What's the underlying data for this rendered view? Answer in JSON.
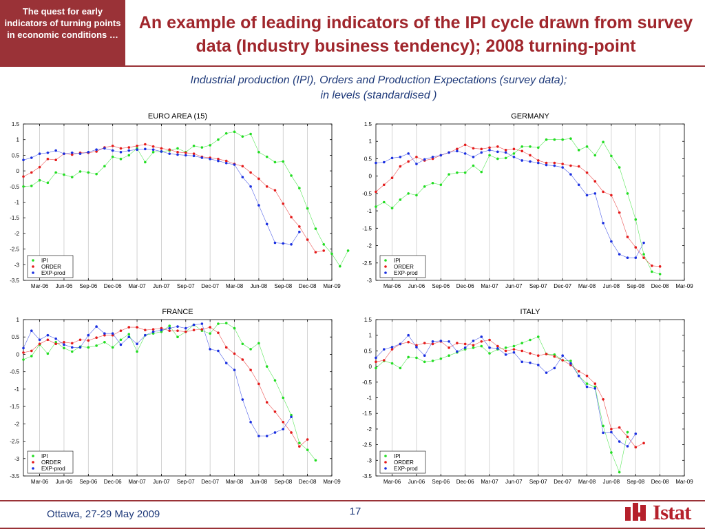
{
  "sidebar": {
    "text": "The quest for early indicators of turning points in economic conditions …"
  },
  "header": {
    "title": "An example of leading indicators of the IPI cycle drawn from survey data (Industry business tendency); 2008 turning-point",
    "subtitle_line1": "Industrial production (IPI), Orders and Production Expectations (survey data);",
    "subtitle_line2": "in levels (standardised )"
  },
  "footer": {
    "date": "Ottawa, 27-29 May 2009",
    "page": "17",
    "logo_text": "Istat"
  },
  "colors": {
    "ipi": "#22dd22",
    "order": "#e41a1a",
    "exp": "#1a2fe0",
    "accent": "#9a3237"
  },
  "chart_data": [
    {
      "type": "line",
      "title": "EURO AREA (15)",
      "ylim": [
        -3.5,
        1.5
      ],
      "yticks": [
        1.5,
        1,
        0.5,
        0,
        -0.5,
        -1,
        -1.5,
        -2,
        -2.5,
        -3,
        -3.5
      ],
      "ytick_labels": [
        "1.5",
        "1",
        "0.5",
        "0",
        "-0.5",
        "-1",
        "-1.5",
        "-2",
        "-2.5",
        "-3",
        "-3.5"
      ],
      "xtick_labels": [
        "Mar-06",
        "Jun-06",
        "Sep-06",
        "Dec-06",
        "Mar-07",
        "Jun-07",
        "Sep-07",
        "Dec-07",
        "Mar-08",
        "Jun-08",
        "Sep-08",
        "Dec-08",
        "Mar-09"
      ],
      "x_start": "Jan-06",
      "x_end": "Mar-09",
      "legend_loc": "bottom-left",
      "grid": "vertical",
      "series": [
        {
          "name": "IPI",
          "values": [
            -0.5,
            -0.48,
            -0.3,
            -0.38,
            -0.05,
            -0.12,
            -0.2,
            -0.02,
            -0.05,
            -0.1,
            0.15,
            0.45,
            0.38,
            0.5,
            0.72,
            0.28,
            0.6,
            0.62,
            0.65,
            0.72,
            0.6,
            0.8,
            0.75,
            0.82,
            1.0,
            1.2,
            1.25,
            1.1,
            1.18,
            0.6,
            0.45,
            0.28,
            0.3,
            -0.15,
            -0.55,
            -1.2,
            -1.85,
            -2.35,
            -2.65,
            -3.05,
            -2.55
          ]
        },
        {
          "name": "ORDER",
          "values": [
            -0.18,
            -0.05,
            0.12,
            0.38,
            0.35,
            0.55,
            0.52,
            0.58,
            0.58,
            0.62,
            0.75,
            0.8,
            0.72,
            0.75,
            0.8,
            0.85,
            0.78,
            0.72,
            0.68,
            0.6,
            0.58,
            0.55,
            0.45,
            0.42,
            0.38,
            0.32,
            0.22,
            0.15,
            -0.05,
            -0.25,
            -0.5,
            -0.62,
            -1.05,
            -1.48,
            -1.78,
            -2.2,
            -2.6,
            -2.55
          ]
        },
        {
          "name": "EXP-prod",
          "values": [
            0.35,
            0.42,
            0.55,
            0.58,
            0.65,
            0.55,
            0.58,
            0.55,
            0.6,
            0.68,
            0.72,
            0.65,
            0.6,
            0.65,
            0.68,
            0.7,
            0.68,
            0.62,
            0.55,
            0.52,
            0.5,
            0.48,
            0.42,
            0.38,
            0.32,
            0.25,
            0.2,
            -0.2,
            -0.5,
            -1.1,
            -1.7,
            -2.3,
            -2.32,
            -2.35,
            -1.95
          ]
        }
      ]
    },
    {
      "type": "line",
      "title": "GERMANY",
      "ylim": [
        -3,
        1.5
      ],
      "yticks": [
        1.5,
        1,
        0.5,
        0,
        -0.5,
        -1,
        -1.5,
        -2,
        -2.5,
        -3
      ],
      "ytick_labels": [
        "1.5",
        "1",
        "0.5",
        "0",
        "-0.5",
        "-1",
        "-1.5",
        "-2",
        "-2.5",
        "-3"
      ],
      "xtick_labels": [
        "Mar-06",
        "Jun-06",
        "Sep-06",
        "Dec-06",
        "Mar-07",
        "Jun-07",
        "Sep-07",
        "Dec-07",
        "Mar-08",
        "Jun-08",
        "Sep-08",
        "Dec-08",
        "Mar-09"
      ],
      "x_start": "Jan-06",
      "x_end": "Mar-09",
      "legend_loc": "bottom-left",
      "grid": "vertical",
      "series": [
        {
          "name": "IPI",
          "values": [
            -0.88,
            -0.75,
            -0.92,
            -0.68,
            -0.5,
            -0.55,
            -0.3,
            -0.2,
            -0.25,
            0.05,
            0.1,
            0.1,
            0.3,
            0.12,
            0.6,
            0.5,
            0.52,
            0.65,
            0.85,
            0.85,
            0.82,
            1.05,
            1.05,
            1.05,
            1.08,
            0.75,
            0.85,
            0.6,
            0.98,
            0.58,
            0.25,
            -0.5,
            -1.25,
            -2.25,
            -2.75,
            -2.82
          ]
        },
        {
          "name": "ORDER",
          "values": [
            -0.45,
            -0.25,
            -0.05,
            0.28,
            0.42,
            0.55,
            0.45,
            0.5,
            0.6,
            0.68,
            0.78,
            0.9,
            0.8,
            0.78,
            0.82,
            0.85,
            0.75,
            0.78,
            0.72,
            0.6,
            0.45,
            0.38,
            0.38,
            0.35,
            0.3,
            0.28,
            0.1,
            -0.15,
            -0.45,
            -0.55,
            -1.05,
            -1.75,
            -2.05,
            -2.35,
            -2.58,
            -2.6
          ]
        },
        {
          "name": "EXP-prod",
          "values": [
            0.38,
            0.4,
            0.52,
            0.55,
            0.65,
            0.35,
            0.48,
            0.55,
            0.6,
            0.68,
            0.72,
            0.65,
            0.55,
            0.68,
            0.75,
            0.7,
            0.68,
            0.55,
            0.45,
            0.42,
            0.38,
            0.32,
            0.3,
            0.25,
            0.05,
            -0.25,
            -0.55,
            -0.5,
            -1.35,
            -1.88,
            -2.25,
            -2.35,
            -2.35,
            -1.92
          ]
        }
      ]
    },
    {
      "type": "line",
      "title": "FRANCE",
      "ylim": [
        -3.5,
        1
      ],
      "yticks": [
        1,
        0.5,
        0,
        -0.5,
        -1,
        -1.5,
        -2,
        -2.5,
        -3,
        -3.5
      ],
      "ytick_labels": [
        "1",
        "0.5",
        "0",
        "-0.5",
        "-1",
        "-1.5",
        "-2",
        "-2.5",
        "-3",
        "-3.5"
      ],
      "xtick_labels": [
        "Mar-06",
        "Jun-06",
        "Sep-06",
        "Dec-06",
        "Mar-07",
        "Jun-07",
        "Sep-07",
        "Dec-07",
        "Mar-08",
        "Jun-08",
        "Sep-08",
        "Dec-08",
        "Mar-09"
      ],
      "x_start": "Jan-06",
      "x_end": "Mar-09",
      "legend_loc": "bottom-left",
      "grid": "vertical",
      "series": [
        {
          "name": "IPI",
          "values": [
            -0.15,
            -0.05,
            0.28,
            0.02,
            0.35,
            0.18,
            0.08,
            0.22,
            0.2,
            0.25,
            0.35,
            0.2,
            0.42,
            0.58,
            0.08,
            0.55,
            0.6,
            0.65,
            0.82,
            0.5,
            0.65,
            0.85,
            0.68,
            0.6,
            0.88,
            0.9,
            0.75,
            0.3,
            0.15,
            0.32,
            -0.35,
            -0.75,
            -1.25,
            -1.75,
            -2.55,
            -2.75,
            -3.05
          ]
        },
        {
          "name": "ORDER",
          "values": [
            0.05,
            0.1,
            0.3,
            0.42,
            0.3,
            0.35,
            0.32,
            0.42,
            0.4,
            0.48,
            0.55,
            0.55,
            0.68,
            0.78,
            0.78,
            0.7,
            0.72,
            0.75,
            0.68,
            0.68,
            0.65,
            0.7,
            0.72,
            0.78,
            0.62,
            0.2,
            0.02,
            -0.15,
            -0.45,
            -0.85,
            -1.38,
            -1.65,
            -1.95,
            -2.25,
            -2.65,
            -2.45
          ]
        },
        {
          "name": "EXP-prod",
          "values": [
            0.18,
            0.68,
            0.42,
            0.55,
            0.45,
            0.28,
            0.2,
            0.2,
            0.55,
            0.8,
            0.6,
            0.6,
            0.28,
            0.5,
            0.3,
            0.55,
            0.65,
            0.7,
            0.75,
            0.8,
            0.75,
            0.85,
            0.88,
            0.15,
            0.1,
            -0.25,
            -0.45,
            -1.3,
            -1.95,
            -2.35,
            -2.35,
            -2.25,
            -2.15,
            -1.8
          ]
        }
      ]
    },
    {
      "type": "line",
      "title": "ITALY",
      "ylim": [
        -3.5,
        1.5
      ],
      "yticks": [
        1.5,
        1,
        0.5,
        0,
        -0.5,
        -1,
        -1.5,
        -2,
        -2.5,
        -3,
        -3.5
      ],
      "ytick_labels": [
        "1.5",
        "1",
        "0.5",
        "0",
        "-0.5",
        "-1",
        "-1.5",
        "-2",
        "-2.5",
        "-3",
        "-3.5"
      ],
      "xtick_labels": [
        "Mar-06",
        "Jun-06",
        "Sep-06",
        "Dec-06",
        "Mar-07",
        "Jun-07",
        "Sep-07",
        "Dec-07",
        "Mar-08",
        "Jun-08",
        "Sep-08",
        "Dec-08",
        "Mar-09"
      ],
      "x_start": "Jan-06",
      "x_end": "Mar-09",
      "legend_loc": "bottom-left",
      "grid": "vertical",
      "series": [
        {
          "name": "IPI",
          "values": [
            -0.05,
            0.18,
            0.1,
            -0.05,
            0.3,
            0.28,
            0.15,
            0.18,
            0.25,
            0.35,
            0.45,
            0.55,
            0.6,
            0.65,
            0.42,
            0.55,
            0.6,
            0.65,
            0.75,
            0.85,
            0.95,
            0.4,
            0.38,
            0.2,
            0.18,
            -0.3,
            -0.55,
            -0.65,
            -1.9,
            -2.75,
            -3.38,
            -2.1
          ]
        },
        {
          "name": "ORDER",
          "values": [
            0.15,
            0.2,
            0.55,
            0.72,
            0.78,
            0.68,
            0.75,
            0.72,
            0.8,
            0.6,
            0.75,
            0.72,
            0.68,
            0.8,
            0.85,
            0.65,
            0.5,
            0.55,
            0.5,
            0.42,
            0.35,
            0.4,
            0.32,
            0.2,
            0.05,
            -0.15,
            -0.3,
            -0.55,
            -1.05,
            -2.0,
            -1.95,
            -2.25,
            -2.58,
            -2.45
          ]
        },
        {
          "name": "EXP-prod",
          "values": [
            0.28,
            0.55,
            0.62,
            0.72,
            1.0,
            0.62,
            0.35,
            0.8,
            0.82,
            0.8,
            0.48,
            0.6,
            0.82,
            0.95,
            0.6,
            0.58,
            0.38,
            0.45,
            0.15,
            0.12,
            0.05,
            -0.2,
            -0.05,
            0.35,
            0.1,
            -0.3,
            -0.65,
            -0.7,
            -2.12,
            -2.1,
            -2.4,
            -2.55,
            -2.15
          ]
        }
      ]
    }
  ]
}
